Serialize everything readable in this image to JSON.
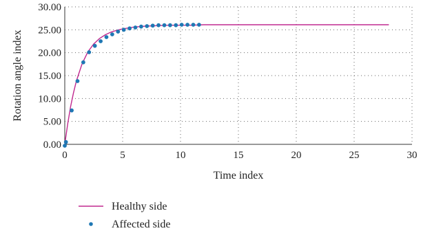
{
  "chart_data": {
    "type": "line",
    "title": "",
    "xlabel": "Time index",
    "ylabel": "Rotation angle index",
    "xlim": [
      0,
      30
    ],
    "ylim": [
      0,
      30
    ],
    "x_ticks": [
      "0",
      "5",
      "10",
      "15",
      "20",
      "25",
      "30"
    ],
    "y_ticks": [
      "0.00",
      "5.00",
      "10.00",
      "15.00",
      "20.00",
      "25.00",
      "30.00"
    ],
    "grid": true,
    "legend_position": "bottom-left",
    "series": [
      {
        "name": "Healthy side",
        "style": "line",
        "color": "#c0288f",
        "x": [
          0,
          0.25,
          0.5,
          0.75,
          1,
          1.5,
          2,
          2.5,
          3,
          3.5,
          4,
          4.5,
          5,
          6,
          7,
          8,
          9,
          10,
          11,
          12,
          14,
          16,
          18,
          20,
          22,
          24,
          26,
          28
        ],
        "y": [
          0,
          4.4,
          8.2,
          11.2,
          13.8,
          17.6,
          20.2,
          21.9,
          23.1,
          23.9,
          24.5,
          24.9,
          25.2,
          25.6,
          25.8,
          25.9,
          26.0,
          26.0,
          26.0,
          26.1,
          26.1,
          26.1,
          26.1,
          26.1,
          26.1,
          26.1,
          26.1,
          26.1
        ]
      },
      {
        "name": "Affected side",
        "style": "scatter",
        "color": "#1f78b4",
        "x": [
          0,
          0.1,
          0.6,
          1.1,
          1.6,
          2.1,
          2.6,
          3.1,
          3.6,
          4.1,
          4.6,
          5.1,
          5.6,
          6.1,
          6.6,
          7.1,
          7.6,
          8.1,
          8.6,
          9.1,
          9.6,
          10.1,
          10.6,
          11.1,
          11.6
        ],
        "y": [
          -0.3,
          0.5,
          7.4,
          13.8,
          17.9,
          20.1,
          21.5,
          22.5,
          23.4,
          24.0,
          24.6,
          25.0,
          25.3,
          25.5,
          25.7,
          25.8,
          25.9,
          26.0,
          26.0,
          26.0,
          26.0,
          26.1,
          26.1,
          26.1,
          26.1
        ]
      }
    ]
  }
}
